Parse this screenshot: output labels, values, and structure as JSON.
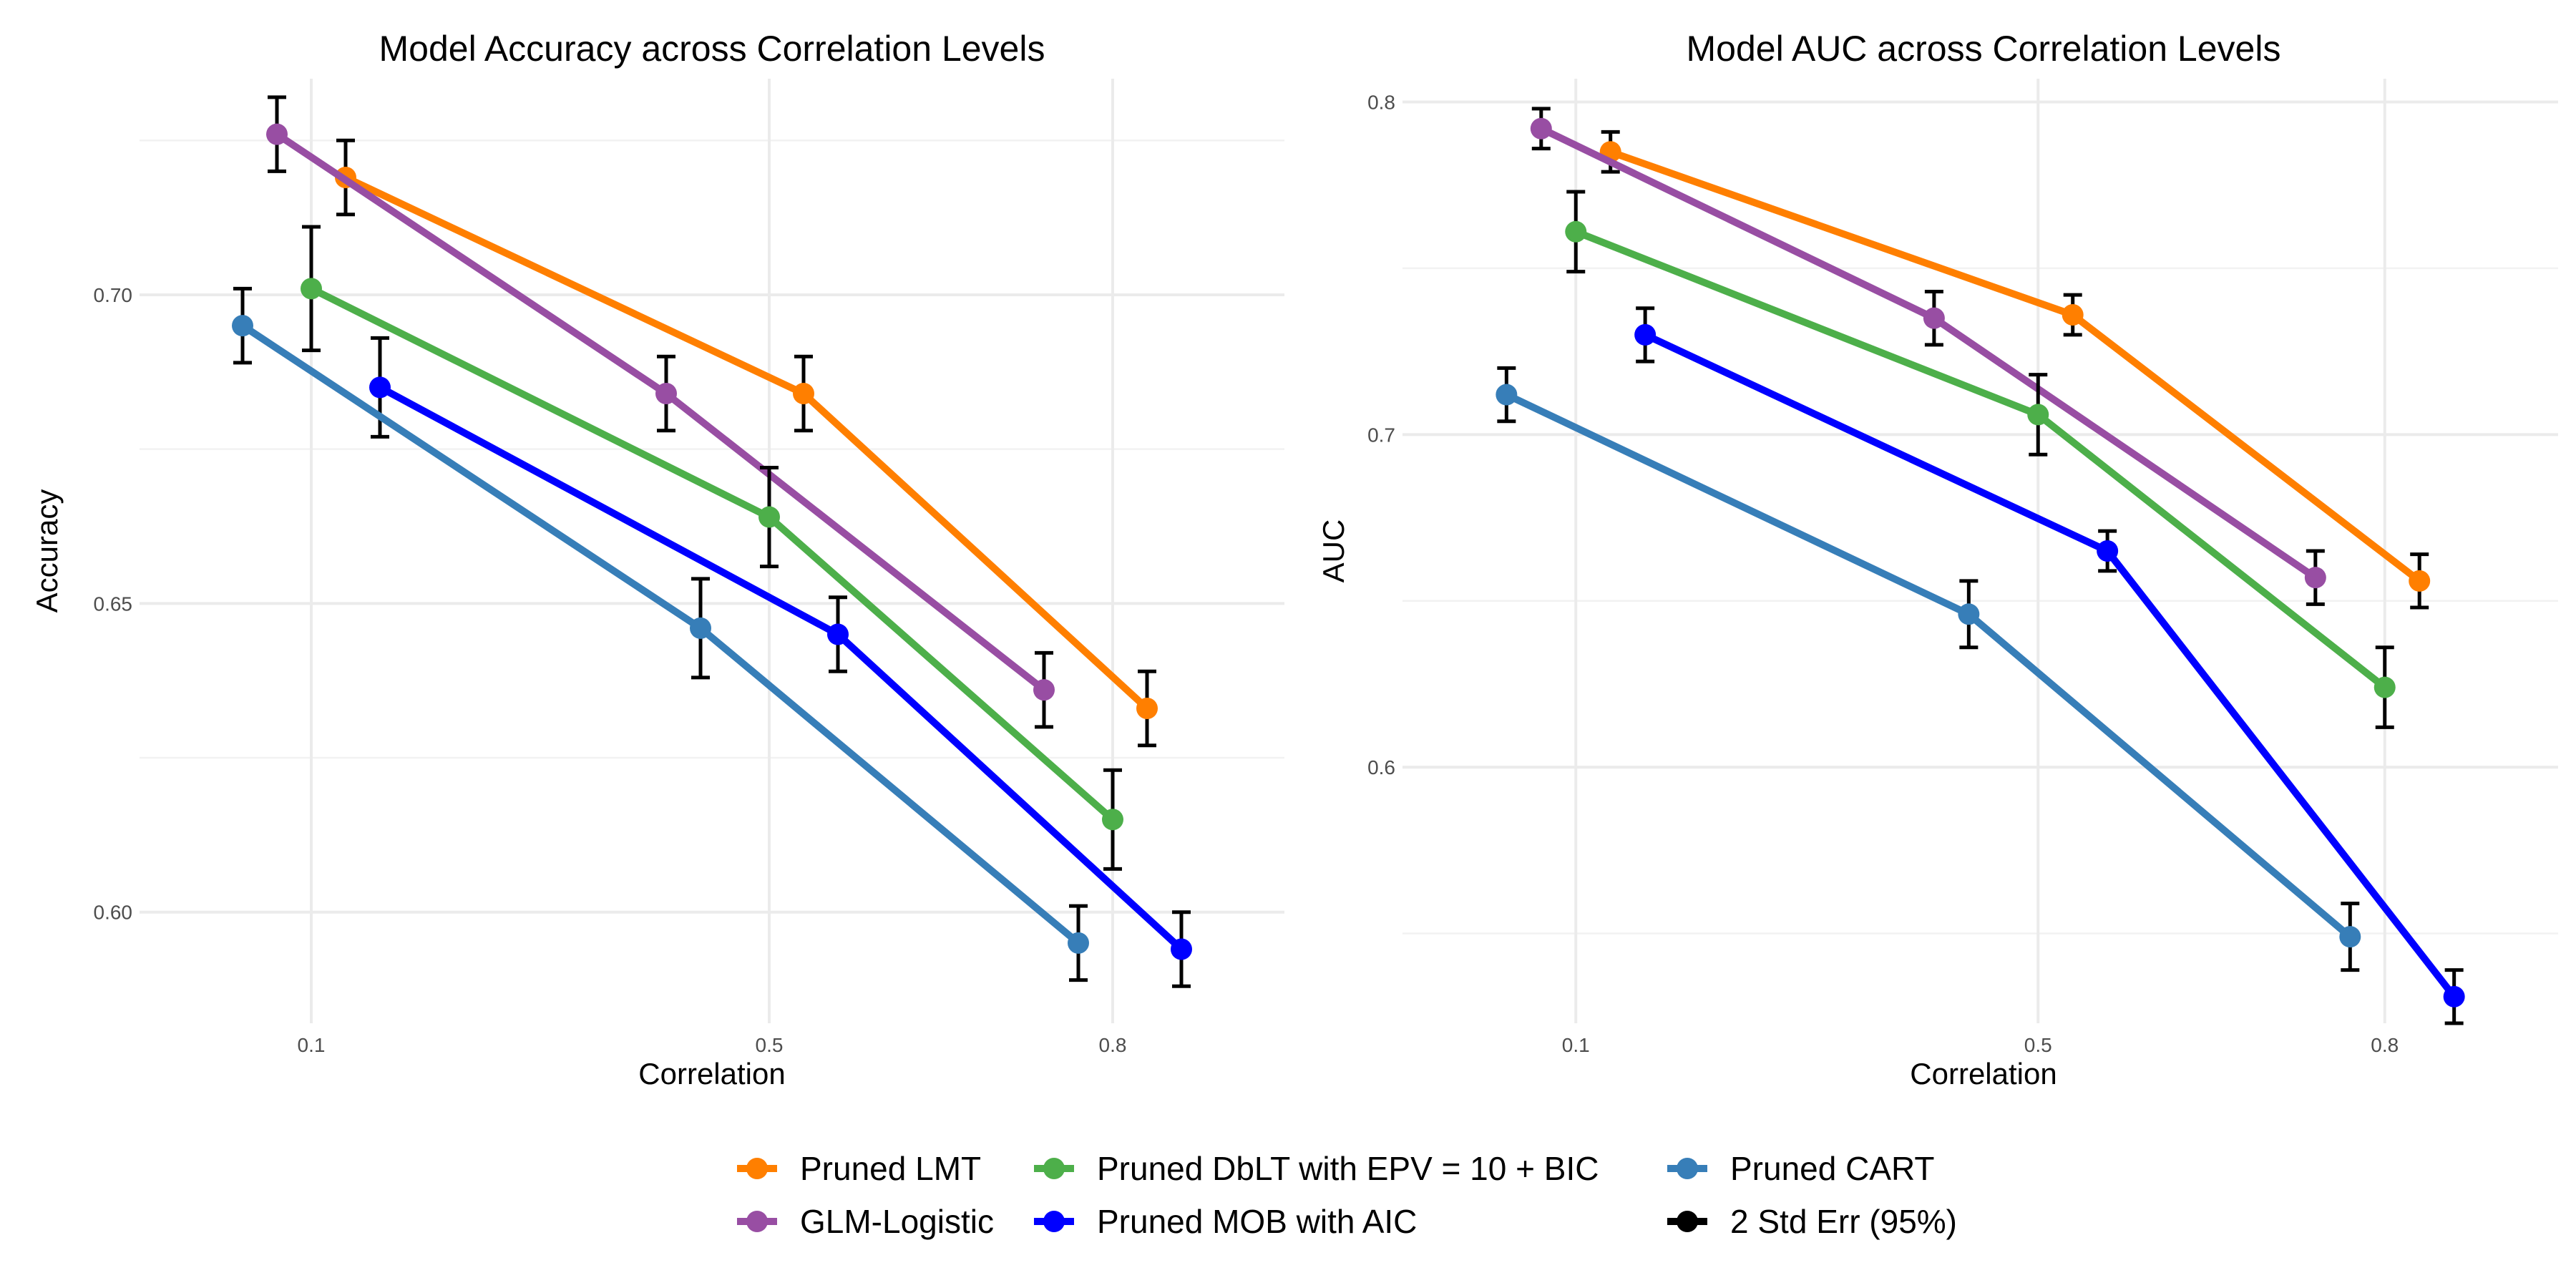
{
  "chart_data": [
    {
      "type": "line",
      "title": "Model Accuracy across Correlation Levels",
      "xlabel": "Correlation",
      "ylabel": "Accuracy",
      "xlim": [
        -0.05,
        0.95
      ],
      "ylim": [
        0.582,
        0.735
      ],
      "x_ticks": [
        0.1,
        0.5,
        0.8
      ],
      "x_tick_labels": [
        "0.1",
        "0.5",
        "0.8"
      ],
      "y_ticks": [
        0.6,
        0.65,
        0.7
      ],
      "y_tick_labels": [
        "0.60",
        "0.65",
        "0.70"
      ],
      "grid": true,
      "series": [
        {
          "name": "Pruned LMT",
          "color": "#ff7f00",
          "x": [
            0.13,
            0.53,
            0.83
          ],
          "values": [
            0.719,
            0.684,
            0.633
          ],
          "err_low": [
            0.713,
            0.678,
            0.627
          ],
          "err_high": [
            0.725,
            0.69,
            0.639
          ]
        },
        {
          "name": "GLM-Logistic",
          "color": "#984ea3",
          "x": [
            0.07,
            0.41,
            0.74
          ],
          "values": [
            0.726,
            0.684,
            0.636
          ],
          "err_low": [
            0.72,
            0.678,
            0.63
          ],
          "err_high": [
            0.732,
            0.69,
            0.642
          ]
        },
        {
          "name": "Pruned DbLT with EPV = 10 + BIC",
          "color": "#4daf4a",
          "x": [
            0.1,
            0.5,
            0.8
          ],
          "values": [
            0.701,
            0.664,
            0.615
          ],
          "err_low": [
            0.691,
            0.656,
            0.607
          ],
          "err_high": [
            0.711,
            0.672,
            0.623
          ]
        },
        {
          "name": "Pruned MOB with AIC",
          "color": "#0000ff",
          "x": [
            0.16,
            0.56,
            0.86
          ],
          "values": [
            0.685,
            0.645,
            0.594
          ],
          "err_low": [
            0.677,
            0.639,
            0.588
          ],
          "err_high": [
            0.693,
            0.651,
            0.6
          ]
        },
        {
          "name": "Pruned CART",
          "color": "#377eb8",
          "x": [
            0.04,
            0.44,
            0.77
          ],
          "values": [
            0.695,
            0.646,
            0.595
          ],
          "err_low": [
            0.689,
            0.638,
            0.589
          ],
          "err_high": [
            0.701,
            0.654,
            0.601
          ]
        }
      ]
    },
    {
      "type": "line",
      "title": "Model AUC across Correlation Levels",
      "xlabel": "Correlation",
      "ylabel": "AUC",
      "xlim": [
        -0.05,
        0.95
      ],
      "ylim": [
        0.523,
        0.807
      ],
      "x_ticks": [
        0.1,
        0.5,
        0.8
      ],
      "x_tick_labels": [
        "0.1",
        "0.5",
        "0.8"
      ],
      "y_ticks": [
        0.6,
        0.7,
        0.8
      ],
      "y_tick_labels": [
        "0.6",
        "0.7",
        "0.8"
      ],
      "grid": true,
      "series": [
        {
          "name": "Pruned LMT",
          "color": "#ff7f00",
          "x": [
            0.13,
            0.53,
            0.83
          ],
          "values": [
            0.785,
            0.736,
            0.656
          ],
          "err_low": [
            0.779,
            0.73,
            0.648
          ],
          "err_high": [
            0.791,
            0.742,
            0.664
          ]
        },
        {
          "name": "GLM-Logistic",
          "color": "#984ea3",
          "x": [
            0.07,
            0.41,
            0.74
          ],
          "values": [
            0.792,
            0.735,
            0.657
          ],
          "err_low": [
            0.786,
            0.727,
            0.649
          ],
          "err_high": [
            0.798,
            0.743,
            0.665
          ]
        },
        {
          "name": "Pruned DbLT with EPV = 10 + BIC",
          "color": "#4daf4a",
          "x": [
            0.1,
            0.5,
            0.8
          ],
          "values": [
            0.761,
            0.706,
            0.624
          ],
          "err_low": [
            0.749,
            0.694,
            0.612
          ],
          "err_high": [
            0.773,
            0.718,
            0.636
          ]
        },
        {
          "name": "Pruned MOB with AIC",
          "color": "#0000ff",
          "x": [
            0.16,
            0.56,
            0.86
          ],
          "values": [
            0.73,
            0.665,
            0.531
          ],
          "err_low": [
            0.722,
            0.659,
            0.523
          ],
          "err_high": [
            0.738,
            0.671,
            0.539
          ]
        },
        {
          "name": "Pruned CART",
          "color": "#377eb8",
          "x": [
            0.04,
            0.44,
            0.77
          ],
          "values": [
            0.712,
            0.646,
            0.549
          ],
          "err_low": [
            0.704,
            0.636,
            0.539
          ],
          "err_high": [
            0.72,
            0.656,
            0.559
          ]
        }
      ]
    }
  ],
  "legend": {
    "placement": "bottom",
    "items": [
      {
        "label": "Pruned LMT",
        "color": "#ff7f00",
        "icon": "line-point-icon"
      },
      {
        "label": "GLM-Logistic",
        "color": "#984ea3",
        "icon": "line-point-icon"
      },
      {
        "label": "Pruned DbLT with EPV = 10 + BIC",
        "color": "#4daf4a",
        "icon": "line-point-icon"
      },
      {
        "label": "Pruned MOB with AIC",
        "color": "#0000ff",
        "icon": "line-point-icon"
      },
      {
        "label": "Pruned CART",
        "color": "#377eb8",
        "icon": "line-point-icon"
      },
      {
        "label": "2 Std Err (95%)",
        "color": "#000000",
        "icon": "line-point-icon"
      }
    ]
  }
}
